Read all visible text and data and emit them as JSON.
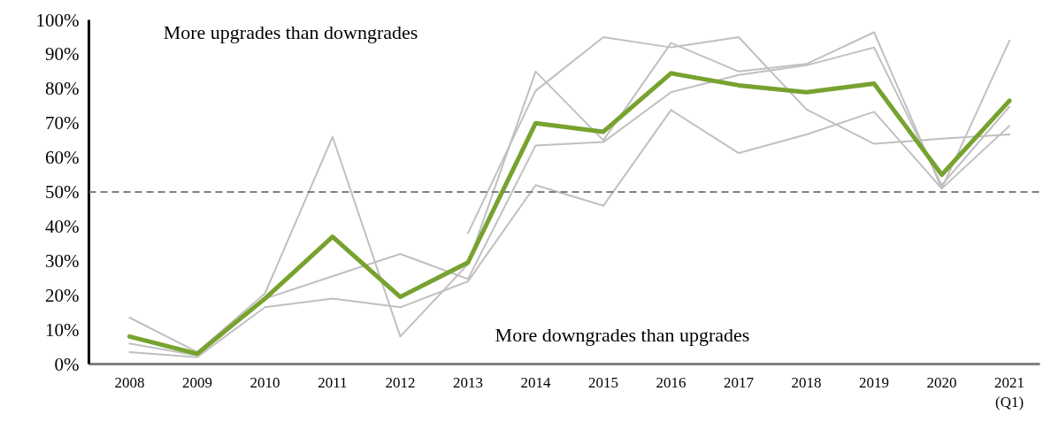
{
  "chart_data": {
    "type": "line",
    "categories": [
      "2008",
      "2009",
      "2010",
      "2011",
      "2012",
      "2013",
      "2014",
      "2015",
      "2016",
      "2017",
      "2018",
      "2019",
      "2020",
      "2021\n(Q1)"
    ],
    "series": [
      {
        "color": "#c0c0c0",
        "values": [
          13.5,
          3.5,
          20.5,
          66,
          8,
          29,
          85,
          65,
          93.3,
          85,
          87.2,
          96.4,
          51,
          94
        ]
      },
      {
        "color": "#c0c0c0",
        "values": [
          6,
          2.5,
          19,
          25.5,
          32,
          24.7,
          63.5,
          64.5,
          79,
          84,
          86.8,
          92,
          52,
          74.8
        ]
      },
      {
        "color": "#c0c0c0",
        "values": [
          3.5,
          2,
          16.5,
          19,
          16.5,
          24,
          52,
          46,
          73.8,
          61.3,
          66.7,
          73.3,
          51,
          69.2
        ]
      },
      {
        "color": "#c0c0c0",
        "values": [
          null,
          null,
          null,
          null,
          null,
          38,
          79.4,
          95,
          92,
          95,
          74,
          64,
          65.5,
          66.7
        ]
      },
      {
        "color": "#77a22f",
        "values": [
          8,
          3,
          19,
          37,
          19.5,
          29.5,
          70,
          67.5,
          84.5,
          81,
          79,
          81.5,
          55,
          76.5
        ]
      }
    ],
    "ylim": [
      0,
      100
    ],
    "yticks": [
      {
        "value": 0,
        "label": "0%"
      },
      {
        "value": 10,
        "label": "10%"
      },
      {
        "value": 20,
        "label": "20%"
      },
      {
        "value": 30,
        "label": "30%"
      },
      {
        "value": 40,
        "label": "40%"
      },
      {
        "value": 50,
        "label": "50%"
      },
      {
        "value": 60,
        "label": "60%"
      },
      {
        "value": 70,
        "label": "70%"
      },
      {
        "value": 80,
        "label": "80%"
      },
      {
        "value": 90,
        "label": "90%"
      },
      {
        "value": 100,
        "label": "100%"
      }
    ],
    "ref_lines": [
      {
        "axis": "y",
        "value": 50,
        "color": "#808080",
        "line_style": "dashed"
      }
    ],
    "annotations": [
      "More upgrades than downgrades",
      "More downgrades than upgrades"
    ],
    "grid": false,
    "marker": "none",
    "line_style": "solid"
  }
}
